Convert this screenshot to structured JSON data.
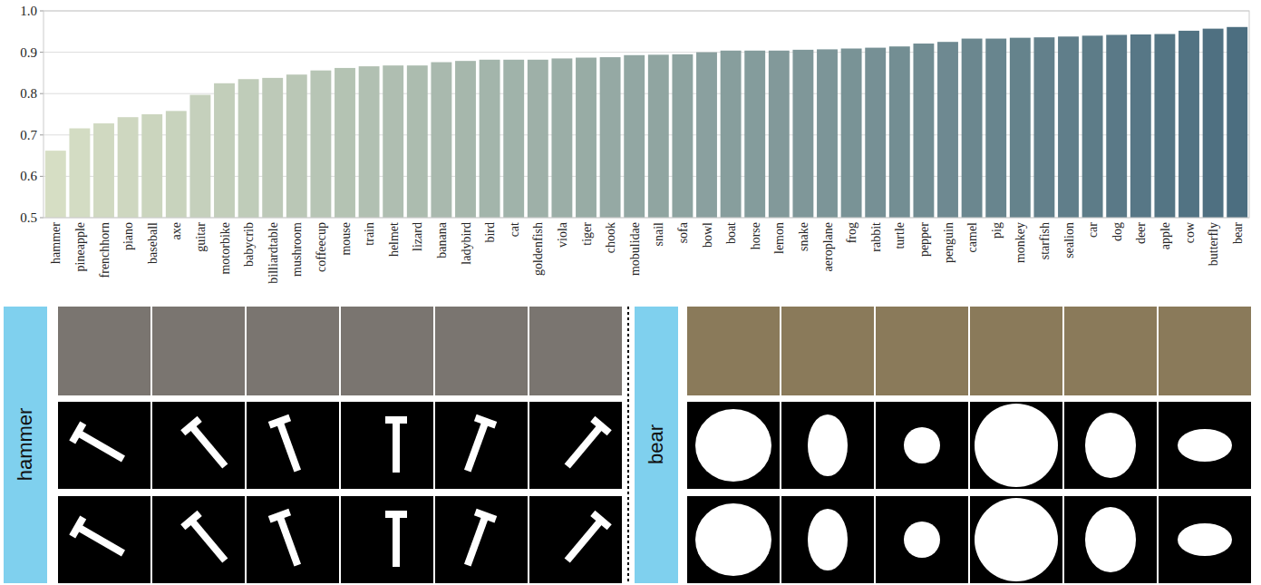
{
  "chart_data": {
    "type": "bar",
    "categories": [
      "hammer",
      "pineapple",
      "frenchhorn",
      "piano",
      "baseball",
      "axe",
      "guitar",
      "motorbike",
      "babycrib",
      "billiardtable",
      "mushroom",
      "coffeecup",
      "mouse",
      "train",
      "helmet",
      "lizard",
      "banana",
      "ladybird",
      "bird",
      "cat",
      "goldenfish",
      "viola",
      "tiger",
      "chook",
      "mobulidae",
      "snail",
      "sofa",
      "bowl",
      "boat",
      "horse",
      "lemon",
      "snake",
      "aeroplane",
      "frog",
      "rabbit",
      "turtle",
      "pepper",
      "penguin",
      "camel",
      "pig",
      "monkey",
      "starfish",
      "sealion",
      "car",
      "dog",
      "deer",
      "apple",
      "cow",
      "butterfly",
      "bear"
    ],
    "values": [
      0.662,
      0.716,
      0.728,
      0.743,
      0.75,
      0.758,
      0.797,
      0.825,
      0.835,
      0.838,
      0.846,
      0.856,
      0.862,
      0.866,
      0.868,
      0.868,
      0.876,
      0.879,
      0.882,
      0.882,
      0.882,
      0.885,
      0.887,
      0.888,
      0.893,
      0.894,
      0.895,
      0.9,
      0.904,
      0.904,
      0.904,
      0.906,
      0.907,
      0.909,
      0.911,
      0.914,
      0.921,
      0.925,
      0.933,
      0.933,
      0.935,
      0.936,
      0.938,
      0.94,
      0.942,
      0.943,
      0.944,
      0.952,
      0.957,
      0.961
    ],
    "ylim": [
      0.5,
      1
    ],
    "yticks": [
      0.5,
      0.6,
      0.7,
      0.8,
      0.9,
      {
        "value": 1,
        "label": "1.0"
      }
    ],
    "grid": true
  },
  "image_panels": {
    "labels": [
      "hammer",
      "bear"
    ]
  }
}
